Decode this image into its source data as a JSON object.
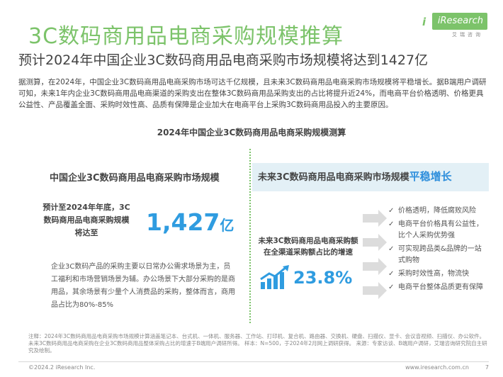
{
  "header": {
    "title": "3C数码商用品电商采购规模推算",
    "subtitle": "预计2024年中国企业3C数码商用品电商采购市场规模将达到1427亿"
  },
  "brand": {
    "logo_text": "iResearch",
    "logo_sub": "艾瑞咨询",
    "accent": "#7cc36a",
    "highlight_blue": "#2f9ce0"
  },
  "intro": "据测算，在2024年，中国企业3C数码商用品电商采购市场可达千亿规模，且未来3C数码商用品电商采购市场规模将平稳增长。据B端用户调研可知，未来1年内企业3C数码商用品电商渠道的采购支出在整体3C数码商用品采购支出的占比将提升近24%，而电商平台价格透明、价格更具公益性、产品覆盖全面、采购时效性高、品质有保障是企业加大在电商平台上采购3C数码商用品投入的主要原因。",
  "chart_title": "2024年中国企业3C数码商用品电商采购规模测算",
  "left": {
    "heading": "中国企业3C数码商用品电商采购市场规模",
    "forecast_label": "预计至2024年年底，3C数码商用品电商采购规模将达至",
    "value": "1,427",
    "unit": "亿",
    "paragraph": "企业3C数码产品的采购主要以日常办公需求场景为主，员工福利和市场营销场景为辅。办公场景下大部分采购的是商用品，其余场景有少量个人消费品的采购，整体而言，商用品占比为80%-85%"
  },
  "right": {
    "heading_prefix": "未来3C数码商用品电商采购市场规模",
    "heading_highlight": "平稳增长",
    "share_label": "未来3C数码商用品电商采购额在全渠道采购额占比的增速",
    "share_value": "23.8%",
    "reasons": [
      "价格透明，降低腐败风险",
      "电商平台价格具有公益性，比个人采购优势强",
      "可实现跨品类&品牌的一站式购物",
      "采购时效性高，物流快",
      "电商平台整体品质更有保障"
    ]
  },
  "note": "注释：2024年3C数码商用品电商采购市场规模计算涵盖笔记本、台式机、一体机、服务器、工作站、打印机、复合机、路由器、交换机、硬盘、扫描仪、显卡、会议音视频、扫描仪、办公软件。未来3C数码商用品电商采购在企业3C数码商用品整体采购占比的增速于B端用户调研所得。 样本：N=500，于2024年2月网上调研获得。 来源：专家访谈、B端用户调研，艾瑞咨询研究院自主研究及绘制。",
  "footer": {
    "copyright": "©2024.2 iResearch Inc.",
    "url": "www.iresearch.com.cn",
    "page": "7"
  }
}
